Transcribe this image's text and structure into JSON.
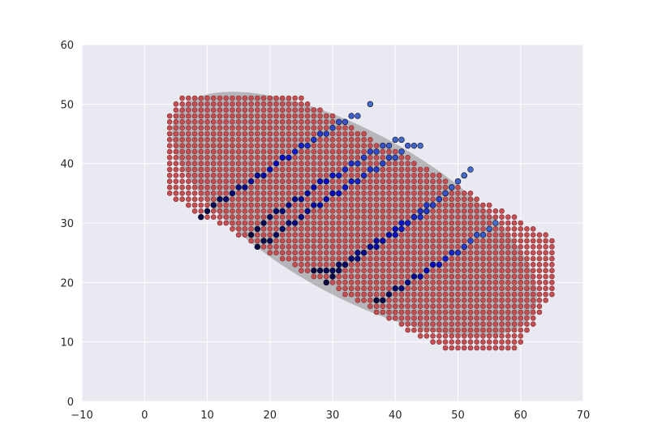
{
  "chart_data": {
    "type": "scatter",
    "title": "",
    "xlabel": "",
    "ylabel": "",
    "xlim": [
      -10,
      70
    ],
    "ylim": [
      0,
      60
    ],
    "xticks": [
      -10,
      0,
      10,
      20,
      30,
      40,
      50,
      60,
      70
    ],
    "yticks": [
      0,
      10,
      20,
      30,
      40,
      50,
      60
    ],
    "grid": true,
    "colors": {
      "plot_background": "#e9e9f1",
      "grid": "#ffffff",
      "points_fill": "#c44e52",
      "points_edge": "#7a2a2c",
      "ellipse": "#8c8c8c"
    },
    "ellipse": {
      "center": [
        33.5,
        31.5
      ],
      "semi_axes": [
        33,
        13.5
      ],
      "angle_deg": -30.5,
      "alpha": 0.55
    },
    "grid_points": {
      "step": 1,
      "x_range": [
        4,
        65
      ],
      "y_range": [
        9,
        51
      ],
      "band_direction": [
        0.862,
        -0.507
      ],
      "band_center": [
        33.5,
        31.5
      ],
      "band_half_length": 34,
      "band_half_width": 12.5
    },
    "series": [
      {
        "values": [
          [
            9,
            31
          ],
          [
            10,
            32
          ],
          [
            11,
            33
          ],
          [
            12,
            34
          ],
          [
            13,
            34
          ],
          [
            14,
            35
          ],
          [
            15,
            36
          ],
          [
            16,
            36
          ],
          [
            17,
            37
          ],
          [
            18,
            38
          ],
          [
            19,
            38
          ],
          [
            20,
            39
          ],
          [
            21,
            40
          ],
          [
            22,
            41
          ],
          [
            23,
            41
          ],
          [
            24,
            42
          ],
          [
            25,
            43
          ],
          [
            26,
            43
          ],
          [
            27,
            44
          ],
          [
            28,
            45
          ],
          [
            29,
            45
          ],
          [
            30,
            46
          ],
          [
            31,
            47
          ],
          [
            32,
            47
          ],
          [
            33,
            48
          ],
          [
            34,
            48
          ],
          [
            36,
            50
          ]
        ]
      },
      {
        "values": [
          [
            17,
            28
          ],
          [
            18,
            29
          ],
          [
            19,
            30
          ],
          [
            20,
            31
          ],
          [
            21,
            32
          ],
          [
            22,
            32
          ],
          [
            23,
            33
          ],
          [
            24,
            34
          ],
          [
            25,
            34
          ],
          [
            26,
            35
          ],
          [
            27,
            36
          ],
          [
            28,
            37
          ],
          [
            29,
            37
          ],
          [
            30,
            38
          ],
          [
            31,
            38
          ],
          [
            32,
            39
          ],
          [
            33,
            40
          ],
          [
            34,
            40
          ],
          [
            35,
            41
          ],
          [
            36,
            42
          ],
          [
            37,
            42
          ],
          [
            38,
            43
          ],
          [
            39,
            43
          ],
          [
            40,
            44
          ],
          [
            41,
            44
          ]
        ]
      },
      {
        "values": [
          [
            18,
            26
          ],
          [
            19,
            27
          ],
          [
            20,
            27
          ],
          [
            21,
            28
          ],
          [
            22,
            29
          ],
          [
            23,
            30
          ],
          [
            24,
            30
          ],
          [
            25,
            31
          ],
          [
            26,
            32
          ],
          [
            27,
            33
          ],
          [
            28,
            33
          ],
          [
            29,
            34
          ],
          [
            30,
            35
          ],
          [
            31,
            35
          ],
          [
            32,
            36
          ],
          [
            33,
            37
          ],
          [
            34,
            37
          ],
          [
            35,
            38
          ],
          [
            36,
            39
          ],
          [
            37,
            39
          ],
          [
            38,
            40
          ],
          [
            39,
            41
          ],
          [
            40,
            41
          ],
          [
            41,
            42
          ],
          [
            42,
            43
          ],
          [
            43,
            43
          ],
          [
            44,
            43
          ]
        ]
      },
      {
        "values": [
          [
            27,
            22
          ],
          [
            28,
            22
          ],
          [
            29,
            22
          ],
          [
            30,
            22
          ],
          [
            31,
            23
          ],
          [
            32,
            23
          ],
          [
            33,
            24
          ],
          [
            34,
            25
          ],
          [
            35,
            25
          ],
          [
            36,
            26
          ],
          [
            37,
            26
          ],
          [
            38,
            27
          ],
          [
            39,
            28
          ],
          [
            40,
            28
          ],
          [
            41,
            29
          ],
          [
            42,
            30
          ],
          [
            43,
            31
          ],
          [
            44,
            31
          ],
          [
            45,
            32
          ],
          [
            46,
            33
          ],
          [
            47,
            34
          ],
          [
            48,
            35
          ],
          [
            49,
            36
          ],
          [
            50,
            37
          ],
          [
            51,
            38
          ],
          [
            52,
            39
          ]
        ]
      },
      {
        "values": [
          [
            29,
            20
          ],
          [
            30,
            21
          ],
          [
            31,
            22
          ],
          [
            32,
            23
          ],
          [
            33,
            24
          ],
          [
            34,
            24
          ],
          [
            35,
            25
          ],
          [
            36,
            26
          ],
          [
            37,
            27
          ],
          [
            38,
            27
          ],
          [
            39,
            28
          ],
          [
            40,
            29
          ],
          [
            41,
            30
          ],
          [
            42,
            30
          ],
          [
            43,
            31
          ],
          [
            44,
            32
          ],
          [
            45,
            33
          ],
          [
            46,
            33
          ],
          [
            47,
            34
          ],
          [
            48,
            35
          ],
          [
            49,
            36
          ],
          [
            50,
            37
          ],
          [
            51,
            38
          ]
        ]
      },
      {
        "values": [
          [
            37,
            17
          ],
          [
            38,
            17
          ],
          [
            39,
            18
          ],
          [
            40,
            19
          ],
          [
            41,
            19
          ],
          [
            42,
            20
          ],
          [
            43,
            21
          ],
          [
            44,
            21
          ],
          [
            45,
            22
          ],
          [
            46,
            23
          ],
          [
            47,
            23
          ],
          [
            48,
            24
          ],
          [
            49,
            25
          ],
          [
            50,
            25
          ],
          [
            51,
            26
          ],
          [
            52,
            27
          ],
          [
            53,
            28
          ],
          [
            54,
            28
          ],
          [
            55,
            29
          ],
          [
            56,
            30
          ]
        ]
      }
    ]
  }
}
